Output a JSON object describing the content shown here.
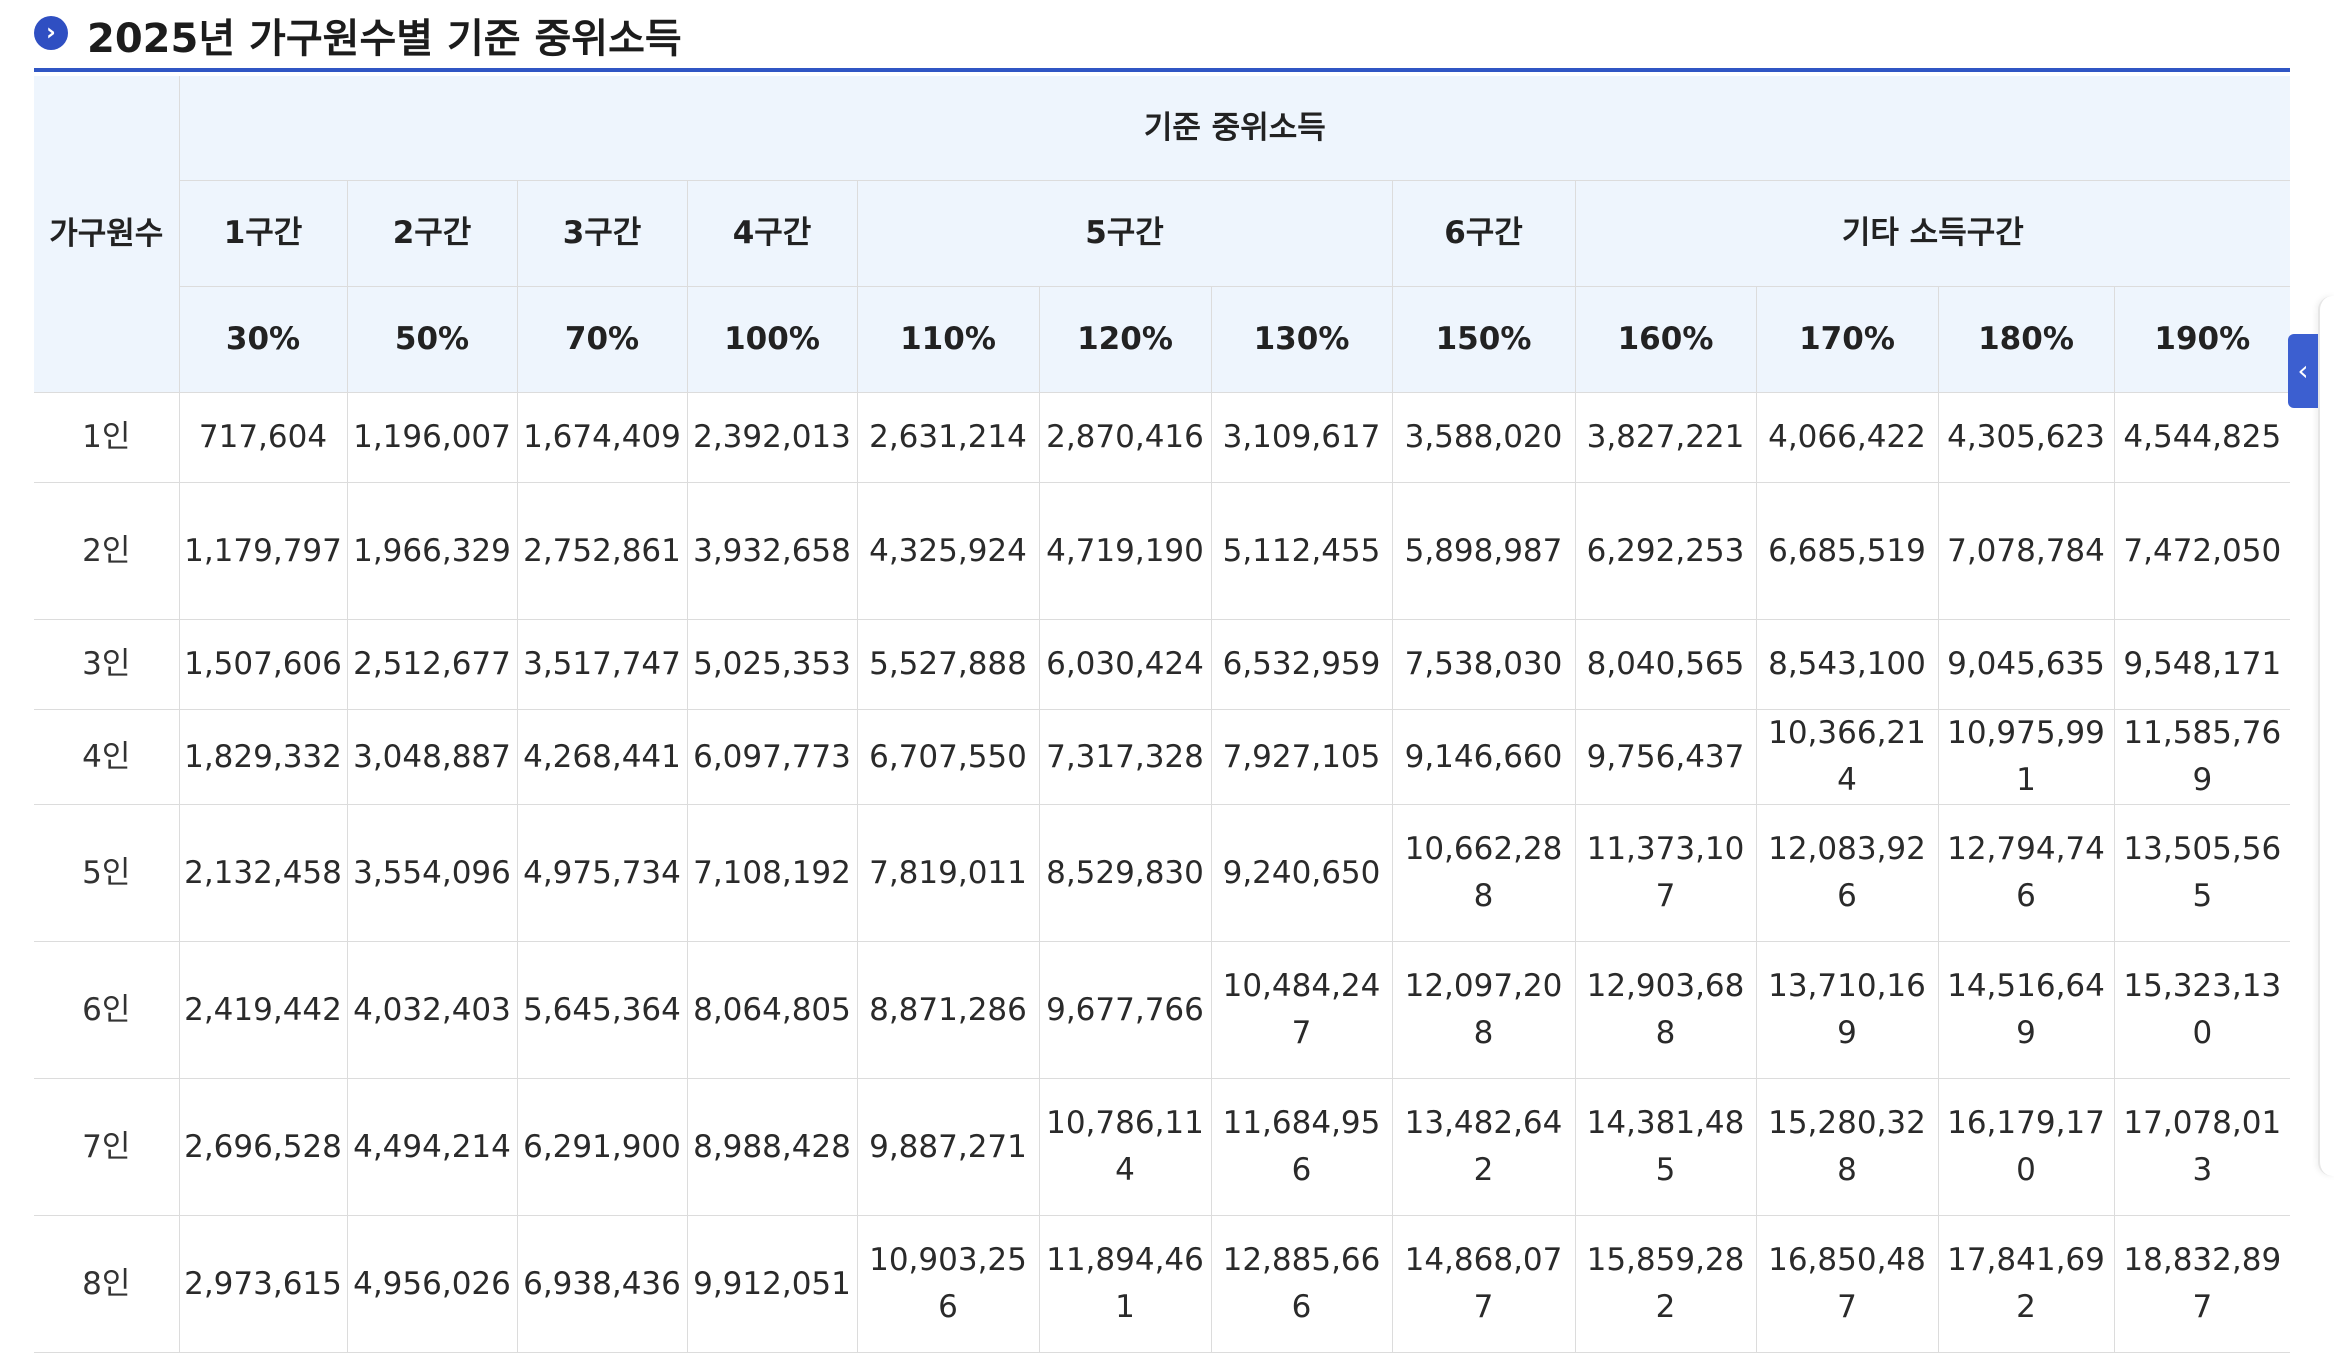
{
  "title": "2025년 가구원수별 기준 중위소득",
  "icons": {
    "title": "chevron-right-icon",
    "side_tab": "chevron-left-icon"
  },
  "colors": {
    "accent": "#3056c4",
    "header_bg": "#eef5fd",
    "border": "#dcdcdc"
  },
  "table": {
    "row_header_label": "가구원수",
    "group_label": "기준 중위소득",
    "bands": [
      "1구간",
      "2구간",
      "3구간",
      "4구간",
      "5구간",
      "6구간",
      "기타 소득구간"
    ],
    "percents": [
      "30%",
      "50%",
      "70%",
      "100%",
      "110%",
      "120%",
      "130%",
      "150%",
      "160%",
      "170%",
      "180%",
      "190%"
    ],
    "rows": [
      {
        "label": "1인",
        "values": [
          "717,604",
          "1,196,007",
          "1,674,409",
          "2,392,013",
          "2,631,214",
          "2,870,416",
          "3,109,617",
          "3,588,020",
          "3,827,221",
          "4,066,422",
          "4,305,623",
          "4,544,825"
        ]
      },
      {
        "label": "2인",
        "values": [
          "1,179,797",
          "1,966,329",
          "2,752,861",
          "3,932,658",
          "4,325,924",
          "4,719,190",
          "5,112,455",
          "5,898,987",
          "6,292,253",
          "6,685,519",
          "7,078,784",
          "7,472,050"
        ]
      },
      {
        "label": "3인",
        "values": [
          "1,507,606",
          "2,512,677",
          "3,517,747",
          "5,025,353",
          "5,527,888",
          "6,030,424",
          "6,532,959",
          "7,538,030",
          "8,040,565",
          "8,543,100",
          "9,045,635",
          "9,548,171"
        ]
      },
      {
        "label": "4인",
        "values": [
          "1,829,332",
          "3,048,887",
          "4,268,441",
          "6,097,773",
          "6,707,550",
          "7,317,328",
          "7,927,105",
          "9,146,660",
          "9,756,437",
          "10,366,214",
          "10,975,991",
          "11,585,769"
        ]
      },
      {
        "label": "5인",
        "values": [
          "2,132,458",
          "3,554,096",
          "4,975,734",
          "7,108,192",
          "7,819,011",
          "8,529,830",
          "9,240,650",
          "10,662,288",
          "11,373,107",
          "12,083,926",
          "12,794,746",
          "13,505,565"
        ]
      },
      {
        "label": "6인",
        "values": [
          "2,419,442",
          "4,032,403",
          "5,645,364",
          "8,064,805",
          "8,871,286",
          "9,677,766",
          "10,484,247",
          "12,097,208",
          "12,903,688",
          "13,710,169",
          "14,516,649",
          "15,323,130"
        ]
      },
      {
        "label": "7인",
        "values": [
          "2,696,528",
          "4,494,214",
          "6,291,900",
          "8,988,428",
          "9,887,271",
          "10,786,114",
          "11,684,956",
          "13,482,642",
          "14,381,485",
          "15,280,328",
          "16,179,170",
          "17,078,013"
        ]
      },
      {
        "label": "8인",
        "values": [
          "2,973,615",
          "4,956,026",
          "6,938,436",
          "9,912,051",
          "10,903,256",
          "11,894,461",
          "12,885,666",
          "14,868,077",
          "15,859,282",
          "16,850,487",
          "17,841,692",
          "18,832,897"
        ]
      }
    ]
  }
}
